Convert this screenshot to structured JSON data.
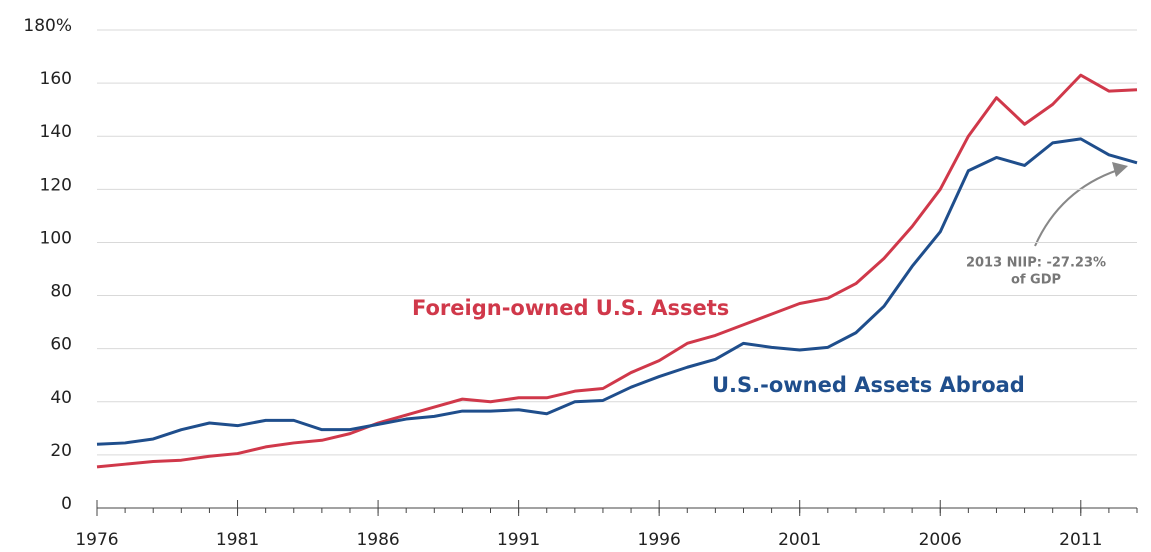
{
  "chart_data": {
    "type": "line",
    "x": [
      1976,
      1977,
      1978,
      1979,
      1980,
      1981,
      1982,
      1983,
      1984,
      1985,
      1986,
      1987,
      1988,
      1989,
      1990,
      1991,
      1992,
      1993,
      1994,
      1995,
      1996,
      1997,
      1998,
      1999,
      2000,
      2001,
      2002,
      2003,
      2004,
      2005,
      2006,
      2007,
      2008,
      2009,
      2010,
      2011,
      2012,
      2013
    ],
    "series": [
      {
        "name": "Foreign-owned U.S. Assets",
        "color": "#d0384a",
        "values": [
          15.5,
          16.5,
          17.5,
          18,
          19.5,
          20.5,
          23,
          24.5,
          25.5,
          28,
          32,
          35,
          38,
          41,
          40,
          41.5,
          41.5,
          44,
          45,
          51,
          55.5,
          62,
          65,
          69,
          73,
          77,
          79,
          84.5,
          94,
          106,
          120,
          140,
          154.5,
          144.5,
          152,
          163,
          157,
          157.5
        ]
      },
      {
        "name": "U.S.-owned Assets Abroad",
        "color": "#1f4e8c",
        "values": [
          24,
          24.5,
          26,
          29.5,
          32,
          31,
          33,
          33,
          29.5,
          29.5,
          31.5,
          33.5,
          34.5,
          36.5,
          36.5,
          37,
          35.5,
          40,
          40.5,
          45.5,
          49.5,
          53,
          56,
          62,
          60.5,
          59.5,
          60.5,
          66,
          76,
          91,
          104,
          127,
          132,
          129,
          137.5,
          139,
          133,
          130
        ]
      }
    ],
    "annotations": [
      "2013 NIIP: -27.23%",
      "of GDP"
    ],
    "xlim": [
      1976,
      2013
    ],
    "xticks": [
      1976,
      1981,
      1986,
      1991,
      1996,
      2001,
      2006,
      2011
    ],
    "ylim": [
      0,
      180
    ],
    "yticks": [
      0,
      20,
      40,
      60,
      80,
      100,
      120,
      140,
      160,
      {
        "value": 180,
        "label": "180%"
      }
    ],
    "grid": true
  }
}
